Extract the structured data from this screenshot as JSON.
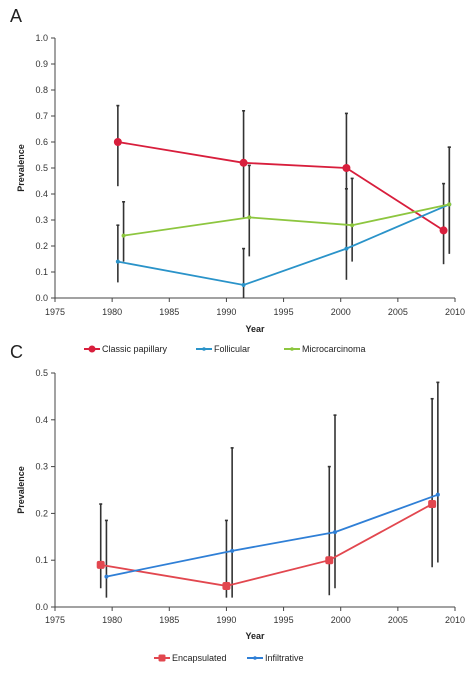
{
  "chart_data": [
    {
      "type": "line",
      "panel_label": "A",
      "xlabel": "Year",
      "ylabel": "Prevalence",
      "xlim": [
        1975,
        2010
      ],
      "ylim": [
        0,
        1.0
      ],
      "xticks": [
        1975,
        1980,
        1985,
        1990,
        1995,
        2000,
        2005,
        2010
      ],
      "xtick_labels": [
        "1975",
        "1980",
        "1985",
        "1990",
        "1995",
        "2000",
        "2005",
        "2010"
      ],
      "yticks": [
        0,
        0.1,
        0.2,
        0.3,
        0.4,
        0.5,
        0.6,
        0.7,
        0.8,
        0.9,
        1.0
      ],
      "ytick_labels": [
        "0.0",
        "0.1",
        "0.2",
        "0.3",
        "0.4",
        "0.5",
        "0.6",
        "0.7",
        "0.8",
        "0.9",
        "1.0"
      ],
      "grid": false,
      "legend_position": "bottom",
      "series": [
        {
          "name": "Classic papillary",
          "color": "#d81e3c",
          "marker": "circle",
          "x": [
            1980.5,
            1991.5,
            2000.5,
            2009
          ],
          "y": [
            0.6,
            0.52,
            0.5,
            0.26
          ],
          "err_low": [
            0.43,
            0.31,
            0.28,
            0.13
          ],
          "err_high": [
            0.74,
            0.72,
            0.71,
            0.44
          ]
        },
        {
          "name": "Follicular",
          "color": "#2a93c9",
          "marker": "line",
          "x": [
            1980.5,
            1991.5,
            2000.5,
            2009.5
          ],
          "y": [
            0.14,
            0.05,
            0.19,
            0.36
          ],
          "err_low": [
            0.06,
            0.0,
            0.07,
            0.17
          ],
          "err_high": [
            0.28,
            0.19,
            0.42,
            0.58
          ]
        },
        {
          "name": "Microcarcinoma",
          "color": "#8dc63f",
          "marker": "line",
          "x": [
            1981,
            1992,
            2001,
            2009.5
          ],
          "y": [
            0.24,
            0.31,
            0.28,
            0.36
          ],
          "err_low": [
            0.14,
            0.16,
            0.14,
            0.17
          ],
          "err_high": [
            0.37,
            0.51,
            0.46,
            0.58
          ]
        }
      ]
    },
    {
      "type": "line",
      "panel_label": "C",
      "xlabel": "Year",
      "ylabel": "Prevalence",
      "xlim": [
        1975,
        2010
      ],
      "ylim": [
        0,
        0.5
      ],
      "xticks": [
        1975,
        1980,
        1985,
        1990,
        1995,
        2000,
        2005,
        2010
      ],
      "xtick_labels": [
        "1975",
        "1980",
        "1985",
        "1990",
        "1995",
        "2000",
        "2005",
        "2010"
      ],
      "yticks": [
        0,
        0.1,
        0.2,
        0.3,
        0.4,
        0.5
      ],
      "ytick_labels": [
        "0.0",
        "0.1",
        "0.2",
        "0.3",
        "0.4",
        "0.5"
      ],
      "grid": false,
      "legend_position": "bottom",
      "series": [
        {
          "name": "Encapsulated",
          "color": "#e2474f",
          "marker": "square",
          "x": [
            1979,
            1990,
            1999,
            2008
          ],
          "y": [
            0.09,
            0.045,
            0.1,
            0.22
          ],
          "err_low": [
            0.04,
            0.02,
            0.025,
            0.085
          ],
          "err_high": [
            0.22,
            0.185,
            0.3,
            0.445
          ]
        },
        {
          "name": "Infiltrative",
          "color": "#2f7fd6",
          "marker": "line",
          "x": [
            1979.5,
            1990.5,
            1999.5,
            2008.5
          ],
          "y": [
            0.065,
            0.12,
            0.16,
            0.24
          ],
          "err_low": [
            0.02,
            0.02,
            0.04,
            0.095
          ],
          "err_high": [
            0.185,
            0.34,
            0.41,
            0.48
          ]
        }
      ]
    }
  ]
}
